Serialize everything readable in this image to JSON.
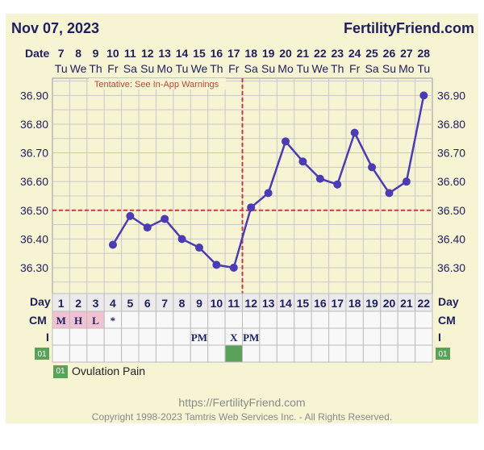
{
  "header": {
    "date": "Nov 07, 2023",
    "site": "FertilityFriend.com"
  },
  "labels": {
    "date_row": "Date",
    "day_row": "Day",
    "cm_row": "CM",
    "i_row": "I"
  },
  "tentative_note": "Tentative: See In-App Warnings",
  "legend": {
    "code": "01",
    "text": "Ovulation Pain"
  },
  "footer": {
    "url": "https://FertilityFriend.com",
    "copyright": "Copyright 1998-2023 Tamtris Web Services Inc. - All Rights Reserved."
  },
  "chart_data": {
    "type": "line",
    "x": [
      1,
      2,
      3,
      4,
      5,
      6,
      7,
      8,
      9,
      10,
      11,
      12,
      13,
      14,
      15,
      16,
      17,
      18,
      19,
      20,
      21,
      22
    ],
    "dates": [
      "7",
      "8",
      "9",
      "10",
      "11",
      "12",
      "13",
      "14",
      "15",
      "16",
      "17",
      "18",
      "19",
      "20",
      "21",
      "22",
      "23",
      "24",
      "25",
      "26",
      "27",
      "28"
    ],
    "weekdays": [
      "Tu",
      "We",
      "Th",
      "Fr",
      "Sa",
      "Su",
      "Mo",
      "Tu",
      "We",
      "Th",
      "Fr",
      "Sa",
      "Su",
      "Mo",
      "Tu",
      "We",
      "Th",
      "Fr",
      "Sa",
      "Su",
      "Mo",
      "Tu"
    ],
    "series": [
      {
        "values": [
          null,
          null,
          null,
          36.38,
          36.48,
          36.44,
          36.47,
          36.4,
          36.37,
          36.31,
          36.3,
          36.51,
          36.56,
          36.74,
          36.67,
          36.61,
          36.59,
          36.77,
          36.65,
          36.56,
          36.6,
          36.9
        ]
      }
    ],
    "yticks": [
      "36.90",
      "36.80",
      "36.70",
      "36.60",
      "36.50",
      "36.40",
      "36.30"
    ],
    "ylim": [
      36.21,
      36.96
    ],
    "coverline": 36.5,
    "ovulation_day": 11,
    "cm": [
      "M",
      "H",
      "L",
      "*",
      "",
      "",
      "",
      "",
      "",
      "",
      "",
      "",
      "",
      "",
      "",
      "",
      "",
      "",
      "",
      "",
      "",
      ""
    ],
    "intercourse": [
      "",
      "",
      "",
      "",
      "",
      "",
      "",
      "",
      "PM",
      "",
      "X",
      "PM",
      "",
      "",
      "",
      "",
      "",
      "",
      "",
      "",
      "",
      ""
    ],
    "ovulation_pain": [
      11
    ],
    "colors": {
      "line": "#4b3bb5",
      "coverline": "#d23a3a",
      "cm_highlight": "#f1c3d2",
      "op": "#5aa25a"
    },
    "grid": true
  }
}
